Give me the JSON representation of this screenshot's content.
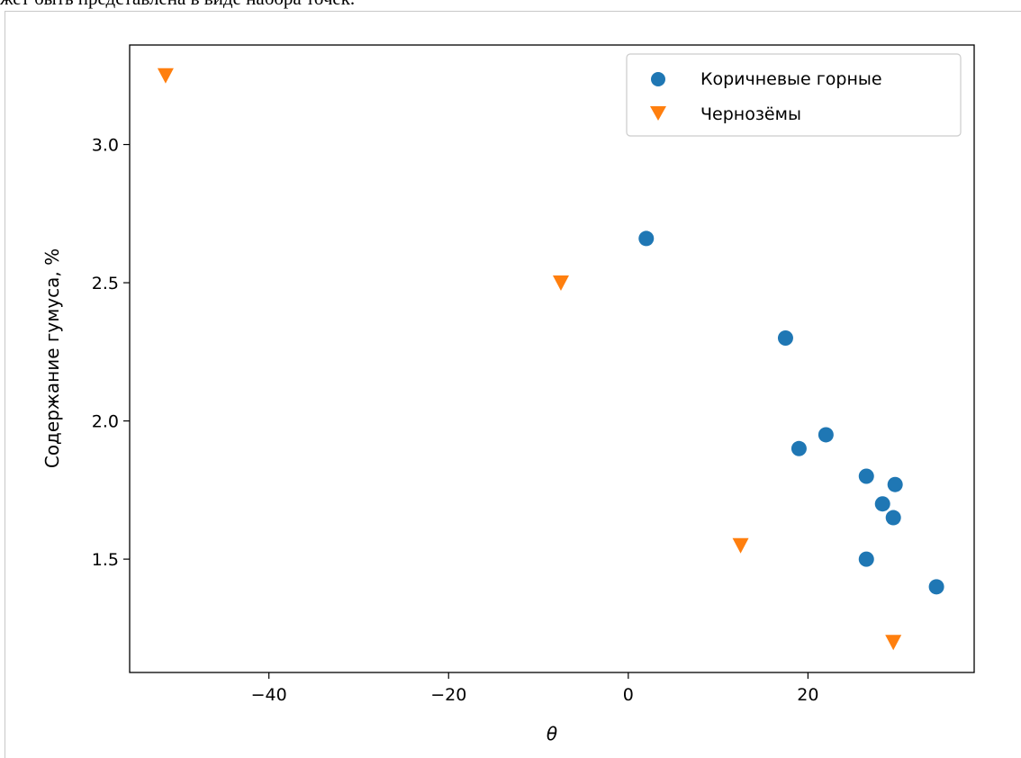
{
  "header_text": "жет быть представлена в виде набора точек.",
  "chart_data": {
    "type": "scatter",
    "title": "",
    "xlabel": "θ",
    "ylabel": "Содержание гумуса, %",
    "xlim": [
      -55.5,
      38.5
    ],
    "ylim": [
      1.09,
      3.36
    ],
    "xticks": [
      -40,
      -20,
      0,
      20
    ],
    "yticks": [
      1.5,
      2.0,
      2.5,
      3.0
    ],
    "xtick_labels": [
      "−40",
      "−20",
      "0",
      "20"
    ],
    "ytick_labels": [
      "1.5",
      "2.0",
      "2.5",
      "3.0"
    ],
    "grid": false,
    "legend_position": "top-right",
    "series": [
      {
        "name": "Коричневые горные",
        "marker": "circle",
        "color": "#1f77b4",
        "points": [
          {
            "x": 2.0,
            "y": 2.66
          },
          {
            "x": 17.5,
            "y": 2.3
          },
          {
            "x": 19.0,
            "y": 1.9
          },
          {
            "x": 22.0,
            "y": 1.95
          },
          {
            "x": 26.5,
            "y": 1.8
          },
          {
            "x": 28.3,
            "y": 1.7
          },
          {
            "x": 29.7,
            "y": 1.77
          },
          {
            "x": 29.5,
            "y": 1.65
          },
          {
            "x": 26.5,
            "y": 1.5
          },
          {
            "x": 34.3,
            "y": 1.4
          }
        ]
      },
      {
        "name": "Чернозёмы",
        "marker": "triangle-down",
        "color": "#ff7f0e",
        "points": [
          {
            "x": -51.5,
            "y": 3.25
          },
          {
            "x": -7.5,
            "y": 2.5
          },
          {
            "x": 12.5,
            "y": 1.55
          },
          {
            "x": 29.5,
            "y": 1.2
          }
        ]
      }
    ]
  }
}
